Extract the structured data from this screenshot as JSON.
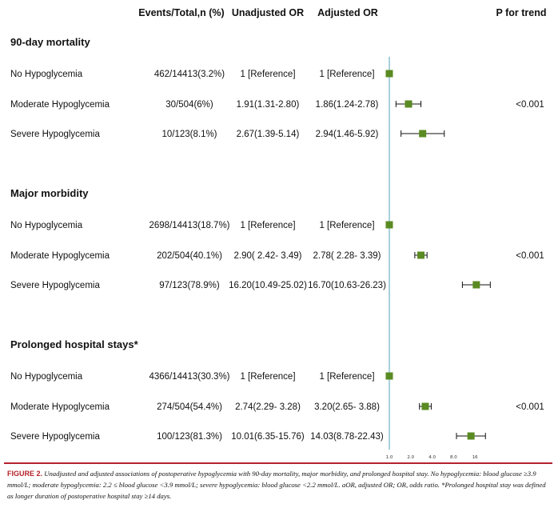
{
  "columns": {
    "events": "Events/Total,n (%)",
    "unadjusted": "Unadjusted OR",
    "adjusted": "Adjusted OR",
    "p_trend": "P for trend"
  },
  "colors": {
    "marker": "#5a8a22",
    "reference_line": "#6fb2c8",
    "caption_accent": "#b5222b"
  },
  "chart_data": {
    "type": "forest",
    "x_ticks": [
      "1.0",
      "2.0",
      "4.0",
      "8.0",
      "16"
    ],
    "x_tick_values": [
      1,
      2,
      4,
      8,
      16
    ],
    "x_scale": "log2",
    "reference_value": 1,
    "sections": [
      {
        "title": "90-day mortality",
        "p_trend": "<0.001",
        "rows": [
          {
            "label": "No Hypoglycemia",
            "events": "462/14413(3.2%)",
            "unadjusted": "1 [Reference]",
            "adjusted": "1 [Reference]",
            "or": 1.0,
            "lo": 1.0,
            "hi": 1.0
          },
          {
            "label": "Moderate Hypoglycemia",
            "events": "30/504(6%)",
            "unadjusted": "1.91(1.31-2.80)",
            "adjusted": "1.86(1.24-2.78)",
            "or": 1.86,
            "lo": 1.24,
            "hi": 2.78
          },
          {
            "label": "Severe Hypoglycemia",
            "events": "10/123(8.1%)",
            "unadjusted": "2.67(1.39-5.14)",
            "adjusted": "2.94(1.46-5.92)",
            "or": 2.94,
            "lo": 1.46,
            "hi": 5.92
          }
        ]
      },
      {
        "title": "Major morbidity",
        "p_trend": "<0.001",
        "rows": [
          {
            "label": "No Hypoglycemia",
            "events": "2698/14413(18.7%)",
            "unadjusted": "1 [Reference]",
            "adjusted": "1 [Reference]",
            "or": 1.0,
            "lo": 1.0,
            "hi": 1.0
          },
          {
            "label": "Moderate Hypoglycemia",
            "events": "202/504(40.1%)",
            "unadjusted": "2.90( 2.42- 3.49)",
            "adjusted": "2.78( 2.28- 3.39)",
            "or": 2.78,
            "lo": 2.28,
            "hi": 3.39
          },
          {
            "label": "Severe Hypoglycemia",
            "events": "97/123(78.9%)",
            "unadjusted": "16.20(10.49-25.02)",
            "adjusted": "16.70(10.63-26.23)",
            "or": 16.7,
            "lo": 10.63,
            "hi": 26.23
          }
        ]
      },
      {
        "title": "Prolonged hospital stays*",
        "p_trend": "<0.001",
        "rows": [
          {
            "label": "No Hypoglycemia",
            "events": "4366/14413(30.3%)",
            "unadjusted": "1 [Reference]",
            "adjusted": "1 [Reference]",
            "or": 1.0,
            "lo": 1.0,
            "hi": 1.0
          },
          {
            "label": "Moderate Hypoglycemia",
            "events": "274/504(54.4%)",
            "unadjusted": "2.74(2.29- 3.28)",
            "adjusted": "3.20(2.65- 3.88)",
            "or": 3.2,
            "lo": 2.65,
            "hi": 3.88
          },
          {
            "label": "Severe Hypoglycemia",
            "events": "100/123(81.3%)",
            "unadjusted": "10.01(6.35-15.76)",
            "adjusted": "14.03(8.78-22.43)",
            "or": 14.03,
            "lo": 8.78,
            "hi": 22.43
          }
        ]
      }
    ]
  },
  "caption": {
    "label": "FIGURE 2.",
    "text": "Unadjusted and adjusted associations of postoperative hypoglycemia with 90-day mortality, major morbidity, and prolonged hospital stay. No hypoglycemia: blood glucose ≥3.9 mmol/L; moderate hypoglycemia: 2.2 ≤ blood glucose <3.9 mmol/L; severe hypoglycemia: blood glucose <2.2 mmol/L. aOR, adjusted OR; OR, odds ratio. *Prolonged hospital stay was defined as longer duration of postoperative hospital stay ≥14 days."
  }
}
